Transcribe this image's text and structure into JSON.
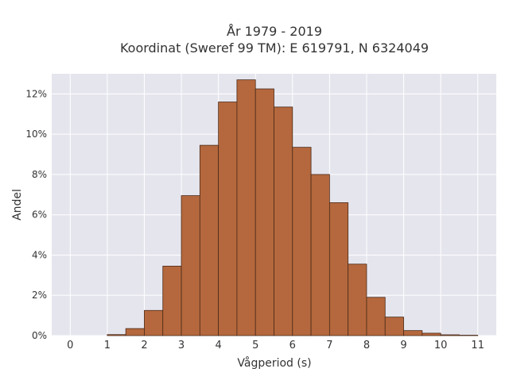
{
  "chart_data": {
    "type": "bar",
    "title_line1": "År 1979 - 2019",
    "title_line2": "Koordinat (Sweref 99 TM): E 619791, N 6324049",
    "xlabel": "Vågperiod (s)",
    "ylabel": "Andel",
    "xlim": [
      -0.5,
      11.5
    ],
    "ylim": [
      0,
      13
    ],
    "xticks": [
      0,
      1,
      2,
      3,
      4,
      5,
      6,
      7,
      8,
      9,
      10,
      11
    ],
    "yticks": [
      0,
      2,
      4,
      6,
      8,
      10,
      12
    ],
    "ytick_suffix": "%",
    "grid": true,
    "bin_width": 0.5,
    "bins": [
      {
        "x0": 1.0,
        "value": 0.05
      },
      {
        "x0": 1.5,
        "value": 0.35
      },
      {
        "x0": 2.0,
        "value": 1.25
      },
      {
        "x0": 2.5,
        "value": 3.45
      },
      {
        "x0": 3.0,
        "value": 6.95
      },
      {
        "x0": 3.5,
        "value": 9.45
      },
      {
        "x0": 4.0,
        "value": 11.6
      },
      {
        "x0": 4.5,
        "value": 12.7
      },
      {
        "x0": 5.0,
        "value": 12.25
      },
      {
        "x0": 5.5,
        "value": 11.35
      },
      {
        "x0": 6.0,
        "value": 9.35
      },
      {
        "x0": 6.5,
        "value": 8.0
      },
      {
        "x0": 7.0,
        "value": 6.6
      },
      {
        "x0": 7.5,
        "value": 3.55
      },
      {
        "x0": 8.0,
        "value": 1.9
      },
      {
        "x0": 8.5,
        "value": 0.92
      },
      {
        "x0": 9.0,
        "value": 0.25
      },
      {
        "x0": 9.5,
        "value": 0.12
      },
      {
        "x0": 10.0,
        "value": 0.04
      },
      {
        "x0": 10.5,
        "value": 0.02
      }
    ],
    "colors": {
      "bar": "#b5683d",
      "bar_edge": "#4a2a18",
      "plot_bg": "#e5e5ee",
      "grid": "#ffffff"
    }
  }
}
